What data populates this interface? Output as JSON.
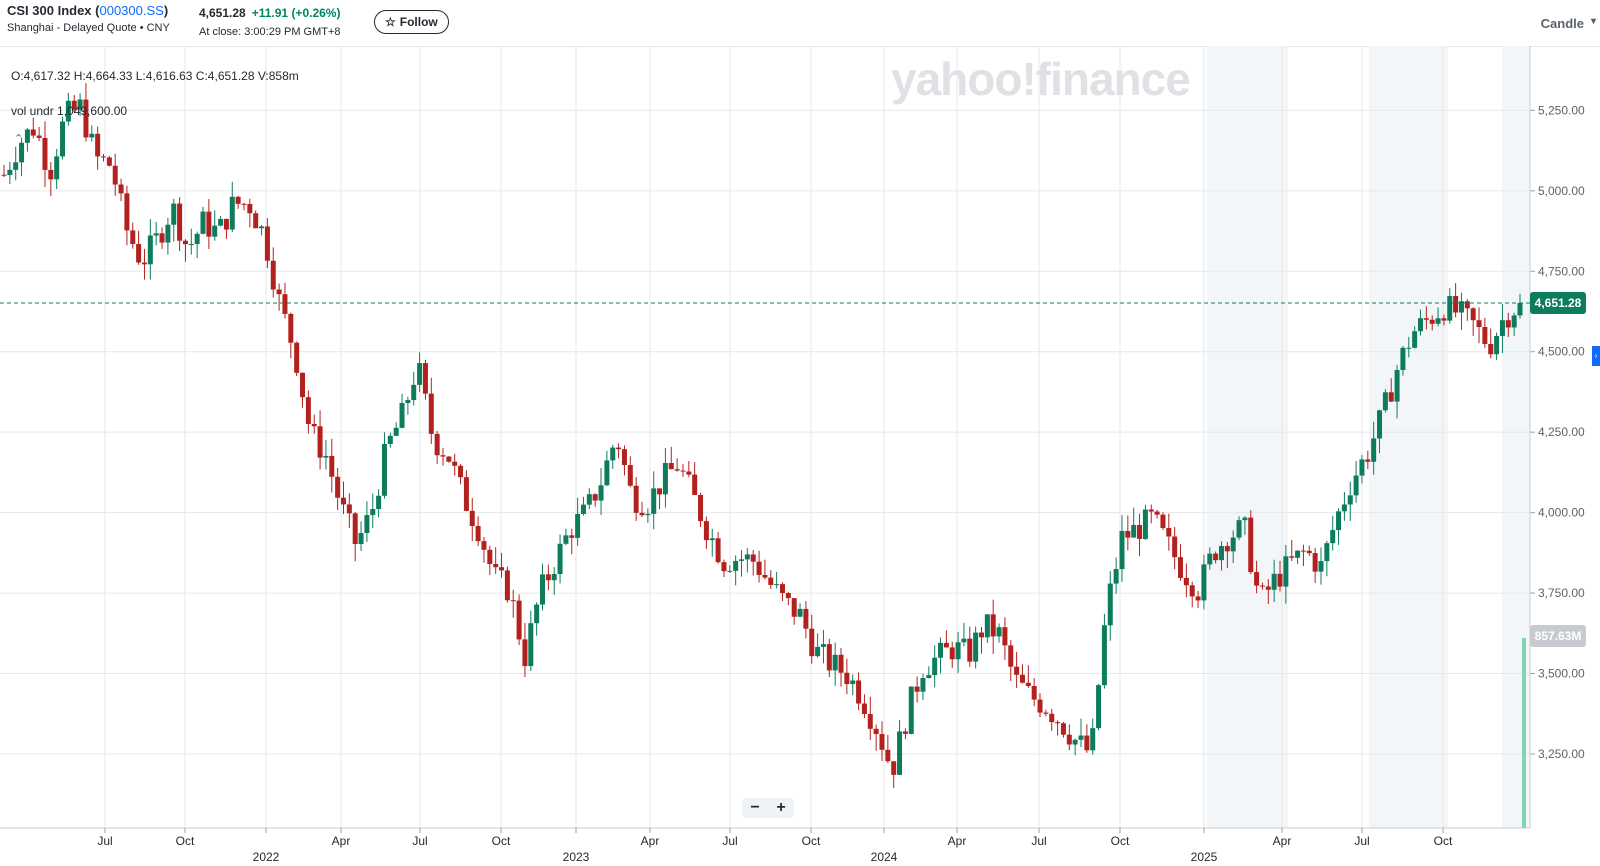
{
  "quote": {
    "name": "CSI 300 Index (",
    "symbol": "000300.SS",
    "name_end": ")",
    "subtitle": "Shanghai - Delayed Quote • CNY",
    "price": "4,651.28",
    "change": "+11.91",
    "change_pct": "(+0.26%)",
    "close_time": "At close: 3:00:29 PM GMT+8",
    "follow_label": "Follow",
    "follow_icon": "star-icon"
  },
  "chart_controls": {
    "type_label": "Candle",
    "zoom_out": "−",
    "zoom_in": "+",
    "watermark": "yahoo!finance"
  },
  "legend": {
    "ohlc": "O:4,617.32  H:4,664.33  L:4,616.63  C:4,651.28  V:858m",
    "vol_undr": "vol undr  1,049,600.00"
  },
  "colors": {
    "up": "#0d7c5c",
    "down": "#b3211e",
    "grid": "#e6e7e9",
    "price_line": "#0d7c5c",
    "volume": "#7fd5b1",
    "shade": "#f3f6f9"
  },
  "chart_data": {
    "type": "candlestick",
    "y_ticks": [
      "5,250.00",
      "5,000.00",
      "4,750.00",
      "4,500.00",
      "4,250.00",
      "4,000.00",
      "3,750.00",
      "3,500.00",
      "3,250.00"
    ],
    "y_tick_values": [
      5250,
      5000,
      4750,
      4500,
      4250,
      4000,
      3750,
      3500,
      3250
    ],
    "ylim": [
      3020,
      5450
    ],
    "x_month_labels": [
      "Jul",
      "Oct",
      "Apr",
      "Jul",
      "Oct",
      "Apr",
      "Jul",
      "Oct",
      "Apr",
      "Jul",
      "Oct",
      "Apr",
      "Jul",
      "Oct"
    ],
    "x_year_labels": [
      "2022",
      "2023",
      "2024",
      "2025"
    ],
    "last_price_label": "4,651.28",
    "last_price": 4651.28,
    "volume_label": "857.63M",
    "volume_value": 857630000,
    "price_path": [
      5050,
      5150,
      5200,
      5060,
      5230,
      5260,
      5100,
      5080,
      4880,
      4780,
      4850,
      4950,
      4820,
      4900,
      4870,
      4960,
      4960,
      4860,
      4650,
      4500,
      4250,
      4180,
      4020,
      3900,
      4000,
      4200,
      4300,
      4460,
      4230,
      4180,
      4050,
      3950,
      3800,
      3760,
      3550,
      3750,
      3850,
      3950,
      4000,
      4100,
      4240,
      4050,
      4030,
      4100,
      4150,
      4050,
      3940,
      3850,
      3860,
      3850,
      3780,
      3720,
      3680,
      3570,
      3530,
      3500,
      3430,
      3330,
      3200,
      3380,
      3520,
      3550,
      3580,
      3560,
      3650,
      3620,
      3480,
      3430,
      3400,
      3350,
      3290,
      3250,
      3700,
      3920,
      3950,
      3980,
      3900,
      3820,
      3760,
      3880,
      3930,
      3950,
      3720,
      3790,
      3840,
      3880,
      3830,
      3980,
      4100,
      4180,
      4300,
      4450,
      4560,
      4600,
      4640,
      4620,
      4580,
      4520,
      4610,
      4651
    ]
  }
}
